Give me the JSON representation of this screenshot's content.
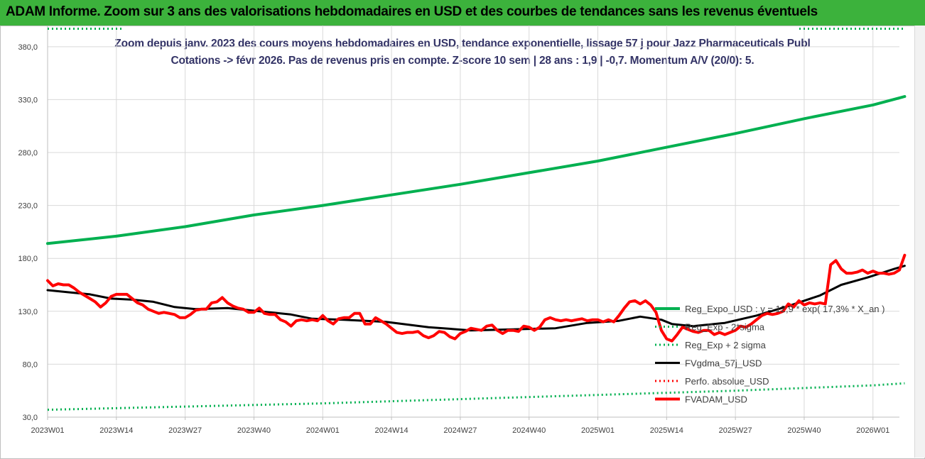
{
  "banner": {
    "title": "ADAM Informe. Zoom sur 3 ans des valorisations hebdomadaires en USD et des courbes de tendances sans les revenus éventuels"
  },
  "chart_data": {
    "type": "line",
    "title_line1": "Zoom depuis janv. 2023 des cours moyens hebdomadaires en USD, tendance exponentielle, lissage 57 j pour Jazz Pharmaceuticals Publ",
    "title_line2": "Cotations -> févr 2026. Pas de revenus pris en compte. Z-score 10 sem | 28 ans : 1,9 | -0,7. Momentum A/V (20/0): 5.",
    "ylim": [
      30,
      400
    ],
    "y_ticks": [
      30,
      80,
      130,
      180,
      230,
      280,
      330,
      380
    ],
    "y_tick_labels": [
      "30,0",
      "80,0",
      "130,0",
      "180,0",
      "230,0",
      "280,0",
      "330,0",
      "380,0"
    ],
    "x_tick_labels": [
      "2023W01",
      "2023W14",
      "2023W27",
      "2023W40",
      "2024W01",
      "2024W14",
      "2024W27",
      "2024W40",
      "2025W01",
      "2025W14",
      "2025W27",
      "2025W40",
      "2026W01"
    ],
    "x_tick_weeks": [
      0,
      13,
      26,
      39,
      52,
      65,
      78,
      91,
      104,
      117,
      130,
      143,
      156
    ],
    "week_count": 162,
    "grid": true,
    "legend_position": "right",
    "series": [
      {
        "name": "Reg_Expo_USD : y = 12,9 * exp( 17,3% * X_an )",
        "style": "solid-thick",
        "color": "#00b050",
        "keypoints": [
          [
            0,
            194
          ],
          [
            13,
            201
          ],
          [
            26,
            210
          ],
          [
            39,
            221
          ],
          [
            52,
            230
          ],
          [
            65,
            240
          ],
          [
            78,
            250
          ],
          [
            91,
            261
          ],
          [
            104,
            272
          ],
          [
            117,
            285
          ],
          [
            130,
            298
          ],
          [
            143,
            312
          ],
          [
            156,
            325
          ],
          [
            162,
            333
          ]
        ]
      },
      {
        "name": "Reg_Exp - 2*sigma",
        "style": "dotted",
        "color": "#00b050",
        "keypoints": [
          [
            0,
            37
          ],
          [
            26,
            40
          ],
          [
            52,
            43
          ],
          [
            78,
            47
          ],
          [
            104,
            51
          ],
          [
            130,
            55
          ],
          [
            156,
            60
          ],
          [
            162,
            62
          ]
        ]
      },
      {
        "name": "Reg_Exp + 2 sigma",
        "style": "dotted",
        "color": "#00b050",
        "keypoints": [
          [
            0,
            397
          ],
          [
            162,
            397
          ]
        ]
      },
      {
        "name": "FVgdma_57j_USD",
        "style": "solid",
        "color": "#000000",
        "keypoints": [
          [
            0,
            150
          ],
          [
            4,
            148
          ],
          [
            8,
            146
          ],
          [
            12,
            142
          ],
          [
            16,
            141
          ],
          [
            20,
            139
          ],
          [
            24,
            134
          ],
          [
            28,
            132
          ],
          [
            34,
            133
          ],
          [
            40,
            130
          ],
          [
            46,
            127
          ],
          [
            50,
            123
          ],
          [
            56,
            122
          ],
          [
            64,
            120
          ],
          [
            72,
            115
          ],
          [
            80,
            112
          ],
          [
            88,
            113
          ],
          [
            96,
            114
          ],
          [
            102,
            119
          ],
          [
            108,
            121
          ],
          [
            112,
            125
          ],
          [
            116,
            122
          ],
          [
            118,
            118
          ],
          [
            122,
            116
          ],
          [
            128,
            119
          ],
          [
            134,
            126
          ],
          [
            140,
            135
          ],
          [
            146,
            145
          ],
          [
            150,
            155
          ],
          [
            155,
            162
          ],
          [
            160,
            170
          ],
          [
            162,
            173
          ]
        ]
      },
      {
        "name": "Perfo. absolue_USD",
        "style": "dotted",
        "color": "#ff0000",
        "keypoints": []
      },
      {
        "name": "FVADAM_USD",
        "style": "solid-thick",
        "color": "#ff0000",
        "keypoints": [
          [
            0,
            159
          ],
          [
            1,
            154
          ],
          [
            2,
            156
          ],
          [
            3,
            155
          ],
          [
            4,
            155
          ],
          [
            5,
            152
          ],
          [
            6,
            148
          ],
          [
            7,
            145
          ],
          [
            8,
            142
          ],
          [
            9,
            139
          ],
          [
            10,
            134
          ],
          [
            11,
            138
          ],
          [
            12,
            144
          ],
          [
            13,
            146
          ],
          [
            14,
            146
          ],
          [
            15,
            146
          ],
          [
            16,
            142
          ],
          [
            17,
            138
          ],
          [
            18,
            136
          ],
          [
            19,
            132
          ],
          [
            20,
            130
          ],
          [
            21,
            128
          ],
          [
            22,
            129
          ],
          [
            23,
            128
          ],
          [
            24,
            127
          ],
          [
            25,
            124
          ],
          [
            26,
            124
          ],
          [
            27,
            127
          ],
          [
            28,
            131
          ],
          [
            29,
            132
          ],
          [
            30,
            132
          ],
          [
            31,
            138
          ],
          [
            32,
            139
          ],
          [
            33,
            143
          ],
          [
            34,
            138
          ],
          [
            35,
            135
          ],
          [
            36,
            133
          ],
          [
            37,
            132
          ],
          [
            38,
            129
          ],
          [
            39,
            129
          ],
          [
            40,
            133
          ],
          [
            41,
            128
          ],
          [
            42,
            127
          ],
          [
            43,
            127
          ],
          [
            44,
            122
          ],
          [
            45,
            120
          ],
          [
            46,
            116
          ],
          [
            47,
            121
          ],
          [
            48,
            122
          ],
          [
            49,
            121
          ],
          [
            50,
            122
          ],
          [
            51,
            121
          ],
          [
            52,
            126
          ],
          [
            53,
            121
          ],
          [
            54,
            118
          ],
          [
            55,
            123
          ],
          [
            56,
            124
          ],
          [
            57,
            124
          ],
          [
            58,
            128
          ],
          [
            59,
            128
          ],
          [
            60,
            118
          ],
          [
            61,
            118
          ],
          [
            62,
            124
          ],
          [
            63,
            121
          ],
          [
            64,
            118
          ],
          [
            65,
            114
          ],
          [
            66,
            110
          ],
          [
            67,
            109
          ],
          [
            68,
            110
          ],
          [
            69,
            110
          ],
          [
            70,
            111
          ],
          [
            71,
            107
          ],
          [
            72,
            105
          ],
          [
            73,
            107
          ],
          [
            74,
            111
          ],
          [
            75,
            110
          ],
          [
            76,
            106
          ],
          [
            77,
            104
          ],
          [
            78,
            109
          ],
          [
            79,
            111
          ],
          [
            80,
            114
          ],
          [
            81,
            113
          ],
          [
            82,
            112
          ],
          [
            83,
            116
          ],
          [
            84,
            117
          ],
          [
            85,
            112
          ],
          [
            86,
            109
          ],
          [
            87,
            112
          ],
          [
            88,
            112
          ],
          [
            89,
            111
          ],
          [
            90,
            116
          ],
          [
            91,
            115
          ],
          [
            92,
            112
          ],
          [
            93,
            115
          ],
          [
            94,
            122
          ],
          [
            95,
            124
          ],
          [
            96,
            122
          ],
          [
            97,
            121
          ],
          [
            98,
            122
          ],
          [
            99,
            121
          ],
          [
            100,
            122
          ],
          [
            101,
            123
          ],
          [
            102,
            121
          ],
          [
            103,
            122
          ],
          [
            104,
            122
          ],
          [
            105,
            120
          ],
          [
            106,
            122
          ],
          [
            107,
            120
          ],
          [
            108,
            126
          ],
          [
            109,
            133
          ],
          [
            110,
            139
          ],
          [
            111,
            140
          ],
          [
            112,
            137
          ],
          [
            113,
            140
          ],
          [
            114,
            136
          ],
          [
            115,
            129
          ],
          [
            116,
            112
          ],
          [
            117,
            104
          ],
          [
            118,
            102
          ],
          [
            119,
            108
          ],
          [
            120,
            115
          ],
          [
            121,
            113
          ],
          [
            122,
            111
          ],
          [
            123,
            110
          ],
          [
            124,
            112
          ],
          [
            125,
            112
          ],
          [
            126,
            108
          ],
          [
            127,
            110
          ],
          [
            128,
            108
          ],
          [
            129,
            110
          ],
          [
            130,
            112
          ],
          [
            131,
            116
          ],
          [
            132,
            115
          ],
          [
            133,
            118
          ],
          [
            134,
            122
          ],
          [
            135,
            126
          ],
          [
            136,
            128
          ],
          [
            137,
            127
          ],
          [
            138,
            128
          ],
          [
            139,
            130
          ],
          [
            140,
            137
          ],
          [
            141,
            134
          ],
          [
            142,
            140
          ],
          [
            143,
            136
          ],
          [
            144,
            138
          ],
          [
            145,
            137
          ],
          [
            146,
            138
          ],
          [
            147,
            137
          ],
          [
            148,
            174
          ],
          [
            149,
            178
          ],
          [
            150,
            170
          ],
          [
            151,
            166
          ],
          [
            152,
            166
          ],
          [
            153,
            167
          ],
          [
            154,
            169
          ],
          [
            155,
            166
          ],
          [
            156,
            168
          ],
          [
            157,
            166
          ],
          [
            158,
            166
          ],
          [
            159,
            165
          ],
          [
            160,
            166
          ],
          [
            161,
            169
          ],
          [
            162,
            183
          ]
        ]
      }
    ]
  }
}
